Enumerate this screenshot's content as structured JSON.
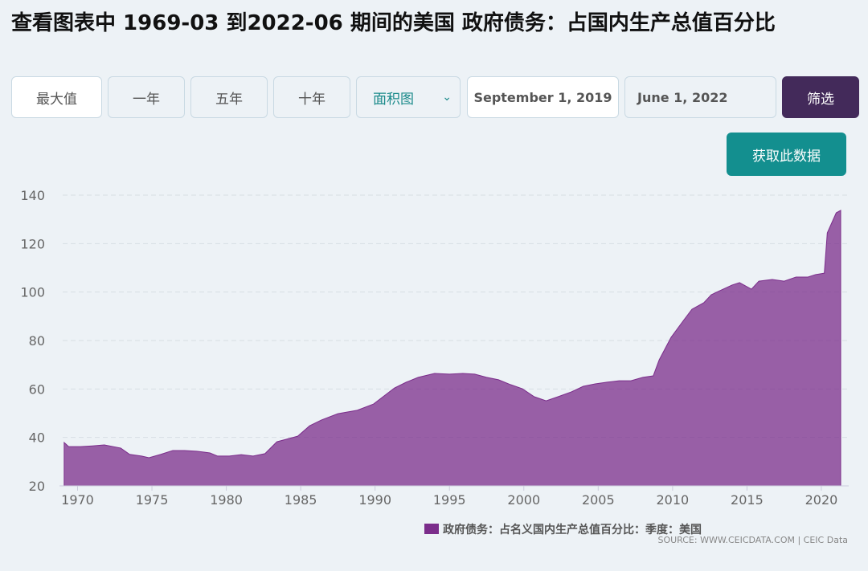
{
  "header": {
    "title": "查看图表中 1969-03 到2022-06 期间的美国 政府债务：占国内生产总值百分比"
  },
  "toolbar": {
    "buttons": [
      "最大值",
      "一年",
      "五年",
      "十年"
    ],
    "chart_type": "面积图",
    "start_date": "September 1, 2019",
    "end_date": "June 1, 2022",
    "filter": "筛选"
  },
  "download": "获取此数据",
  "chart_data": {
    "type": "area",
    "x": [
      1969.1,
      1969.4,
      1970.2,
      1971.0,
      1971.8,
      1972.9,
      1973.5,
      1974.3,
      1974.8,
      1975.6,
      1976.4,
      1977.2,
      1978.0,
      1978.9,
      1979.4,
      1980.2,
      1981.0,
      1981.8,
      1982.6,
      1983.4,
      1984.0,
      1984.8,
      1985.6,
      1986.4,
      1987.5,
      1988.8,
      1989.9,
      1991.3,
      1992.1,
      1992.9,
      1994.0,
      1995.0,
      1995.9,
      1996.7,
      1997.5,
      1998.3,
      1999.1,
      1999.9,
      2000.7,
      2001.5,
      2002.3,
      2003.2,
      2004.0,
      2004.8,
      2005.6,
      2006.4,
      2007.2,
      2008.0,
      2008.7,
      2009.1,
      2009.9,
      2010.7,
      2011.3,
      2012.1,
      2012.6,
      2013.4,
      2014.0,
      2014.5,
      2015.3,
      2015.8,
      2016.7,
      2017.5,
      2018.3,
      2019.1,
      2019.6,
      2020.2,
      2020.4,
      2021.0,
      2021.3
    ],
    "series": [
      {
        "name": "政府债务：占名义国内生产总值百分比：季度：美国",
        "color": "#7b2d8b",
        "values": [
          37.9,
          36.2,
          36.2,
          36.5,
          36.9,
          35.6,
          33.0,
          32.3,
          31.6,
          33.0,
          34.6,
          34.6,
          34.3,
          33.6,
          32.3,
          32.3,
          32.9,
          32.3,
          33.3,
          38.2,
          39.2,
          40.5,
          44.8,
          47.2,
          49.8,
          51.2,
          53.8,
          60.4,
          62.8,
          64.8,
          66.4,
          66.1,
          66.4,
          66.1,
          64.8,
          63.8,
          61.8,
          60.1,
          56.8,
          55.1,
          56.8,
          58.8,
          61.1,
          62.1,
          62.8,
          63.4,
          63.4,
          64.8,
          65.4,
          72.0,
          81.3,
          88.0,
          92.9,
          95.6,
          98.9,
          101.2,
          102.9,
          103.9,
          101.2,
          104.5,
          105.2,
          104.5,
          106.2,
          106.2,
          107.2,
          107.8,
          124.4,
          132.7,
          133.7
        ]
      }
    ],
    "xlim": [
      1969.0,
      2021.3
    ],
    "xticks": [
      1970,
      1975,
      1980,
      1985,
      1990,
      1995,
      2000,
      2005,
      2010,
      2015,
      2020
    ],
    "ylim": [
      20,
      140
    ],
    "yticks": [
      20,
      40,
      60,
      80,
      100,
      120,
      140
    ],
    "grid": true,
    "source": "SOURCE: WWW.CEICDATA.COM | CEIC Data"
  }
}
